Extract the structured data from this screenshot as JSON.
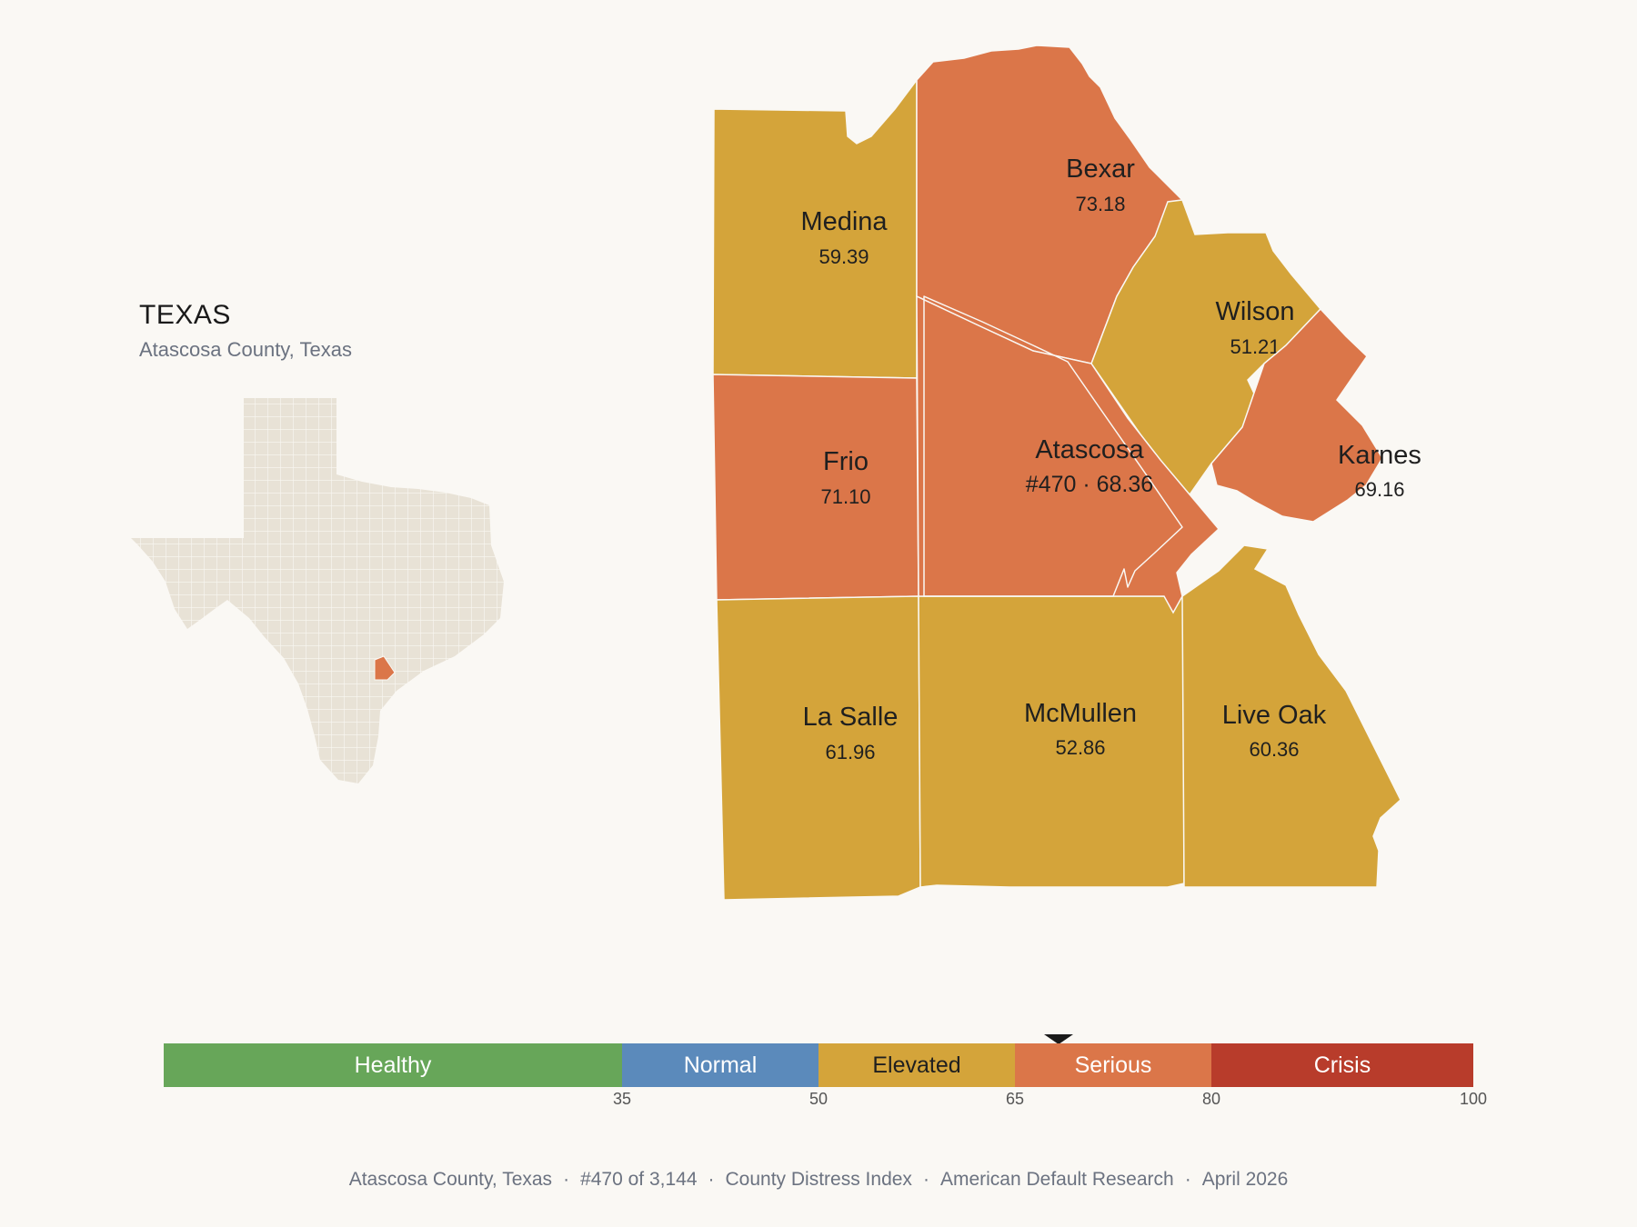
{
  "inset": {
    "title": "TEXAS",
    "subtitle": "Atascosa County, Texas",
    "base_color": "#e8e2d6",
    "highlight_color": "#db7649"
  },
  "counties": [
    {
      "name": "Medina",
      "score": "59.39",
      "level": "Elevated"
    },
    {
      "name": "Bexar",
      "score": "73.18",
      "level": "Serious"
    },
    {
      "name": "Wilson",
      "score": "51.21",
      "level": "Elevated"
    },
    {
      "name": "Frio",
      "score": "71.10",
      "level": "Serious"
    },
    {
      "name": "Atascosa",
      "score": "#470 · 68.36",
      "level": "Serious",
      "selected": true
    },
    {
      "name": "Karnes",
      "score": "69.16",
      "level": "Serious"
    },
    {
      "name": "La Salle",
      "score": "61.96",
      "level": "Elevated"
    },
    {
      "name": "McMullen",
      "score": "52.86",
      "level": "Elevated"
    },
    {
      "name": "Live Oak",
      "score": "60.36",
      "level": "Elevated"
    }
  ],
  "colors": {
    "elevated": "#d4a43a",
    "serious": "#db7649",
    "selected_outline": "#1f3a5f"
  },
  "legend": {
    "segments": [
      {
        "label": "Healthy",
        "color": "#67a659",
        "from": 0,
        "to": 35
      },
      {
        "label": "Normal",
        "color": "#5b8abb",
        "from": 35,
        "to": 50
      },
      {
        "label": "Elevated",
        "color": "#d4a43a",
        "from": 50,
        "to": 65
      },
      {
        "label": "Serious",
        "color": "#db7649",
        "from": 65,
        "to": 80
      },
      {
        "label": "Crisis",
        "color": "#b83c2b",
        "from": 80,
        "to": 100
      }
    ],
    "ticks": [
      "35",
      "50",
      "65",
      "80",
      "100"
    ],
    "marker_value": 68.36
  },
  "footer": {
    "county": "Atascosa County, Texas",
    "rank": "#470 of 3,144",
    "index": "County Distress Index",
    "source": "American Default Research",
    "date": "April 2026"
  }
}
